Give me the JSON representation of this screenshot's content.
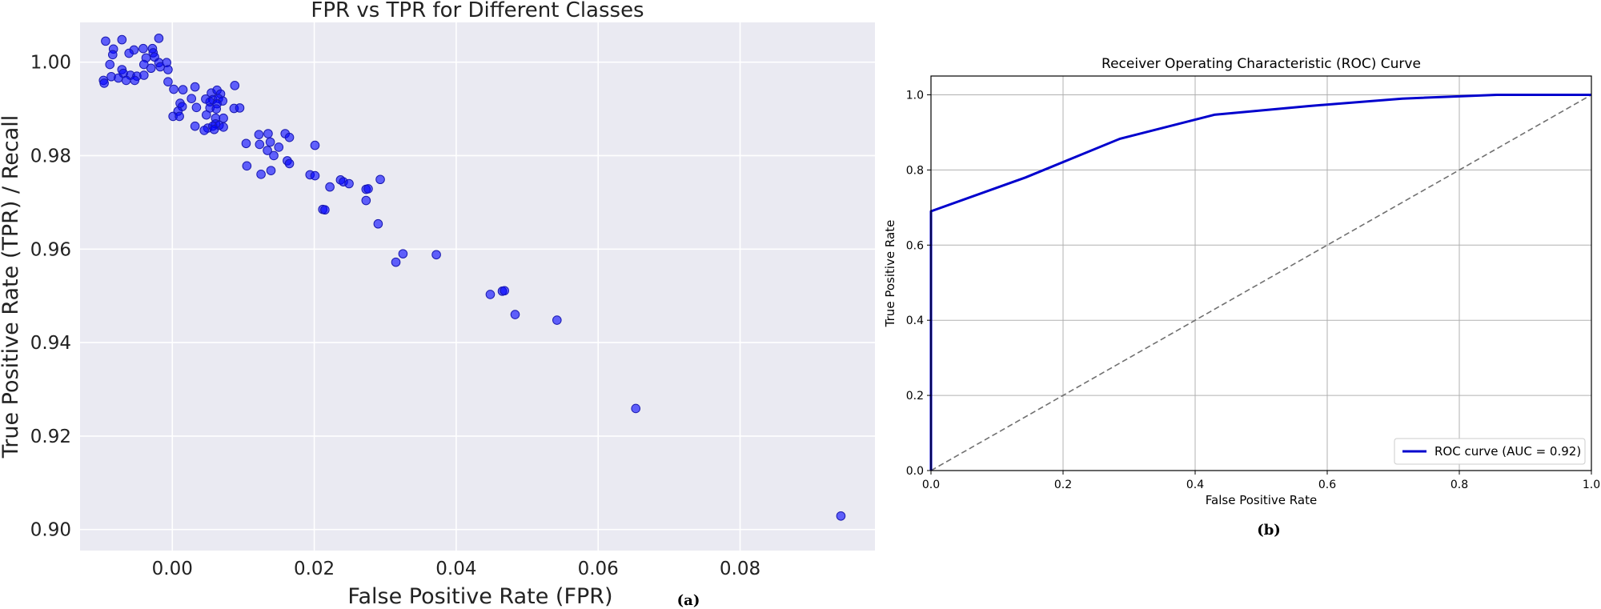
{
  "chart_data": [
    {
      "type": "scatter",
      "title": "FPR vs TPR for Different Classes",
      "xlabel": "False Positive Rate (FPR)",
      "ylabel": "True Positive Rate (TPR) / Recall",
      "xlim": [
        -0.013,
        0.099
      ],
      "ylim": [
        0.8955,
        1.0085
      ],
      "xticks": [
        0.0,
        0.02,
        0.04,
        0.06,
        0.08
      ],
      "xtick_labels": [
        "0.00",
        "0.02",
        "0.04",
        "0.06",
        "0.08"
      ],
      "yticks": [
        0.9,
        0.92,
        0.94,
        0.96,
        0.98,
        1.0
      ],
      "ytick_labels": [
        "0.90",
        "0.92",
        "0.94",
        "0.96",
        "0.98",
        "1.00"
      ],
      "grid": true,
      "style": "seaborn",
      "background": "#eaeaf2",
      "point_color": "#0000ff",
      "caption": "(a)",
      "points": [
        [
          -0.0094,
          1.0045
        ],
        [
          -0.0071,
          1.0048
        ],
        [
          -0.0019,
          1.0051
        ],
        [
          -0.0083,
          1.0028
        ],
        [
          -0.0041,
          1.0029
        ],
        [
          -0.0028,
          1.0029
        ],
        [
          -0.0054,
          1.0026
        ],
        [
          -0.0061,
          1.0019
        ],
        [
          -0.0084,
          1.0016
        ],
        [
          -0.0027,
          1.002
        ],
        [
          -0.0025,
          1.0011
        ],
        [
          -0.0037,
          1.0009
        ],
        [
          -0.0019,
          0.9999
        ],
        [
          -0.0088,
          0.9995
        ],
        [
          -0.004,
          0.9995
        ],
        [
          -0.003,
          0.9987
        ],
        [
          -0.0017,
          0.999
        ],
        [
          -0.0008,
          0.9999
        ],
        [
          -0.0006,
          0.9984
        ],
        [
          -0.0071,
          0.9984
        ],
        [
          -0.0069,
          0.9976
        ],
        [
          -0.0059,
          0.9972
        ],
        [
          -0.005,
          0.997
        ],
        [
          -0.0086,
          0.9969
        ],
        [
          -0.0076,
          0.9966
        ],
        [
          -0.0053,
          0.9961
        ],
        [
          -0.0065,
          0.9961
        ],
        [
          -0.0097,
          0.9961
        ],
        [
          -0.0096,
          0.9955
        ],
        [
          -0.004,
          0.9972
        ],
        [
          -0.0006,
          0.9958
        ],
        [
          0.0002,
          0.9942
        ],
        [
          0.0015,
          0.9941
        ],
        [
          0.0032,
          0.9947
        ],
        [
          0.0055,
          0.9934
        ],
        [
          0.0063,
          0.994
        ],
        [
          0.0068,
          0.9932
        ],
        [
          0.0057,
          0.992
        ],
        [
          0.0047,
          0.9921
        ],
        [
          0.0065,
          0.9922
        ],
        [
          0.0027,
          0.9922
        ],
        [
          0.0071,
          0.9917
        ],
        [
          0.0053,
          0.9915
        ],
        [
          0.0063,
          0.9911
        ],
        [
          0.0088,
          0.995
        ],
        [
          0.0011,
          0.9912
        ],
        [
          0.0014,
          0.9905
        ],
        [
          0.0008,
          0.9895
        ],
        [
          0.0001,
          0.9884
        ],
        [
          0.001,
          0.9884
        ],
        [
          0.0053,
          0.9902
        ],
        [
          0.0062,
          0.99
        ],
        [
          0.0087,
          0.9901
        ],
        [
          0.0095,
          0.9902
        ],
        [
          0.0034,
          0.9903
        ],
        [
          0.0048,
          0.9887
        ],
        [
          0.0061,
          0.988
        ],
        [
          0.0072,
          0.988
        ],
        [
          0.0061,
          0.9868
        ],
        [
          0.0032,
          0.9863
        ],
        [
          0.005,
          0.9859
        ],
        [
          0.0057,
          0.9863
        ],
        [
          0.0066,
          0.9865
        ],
        [
          0.0072,
          0.9861
        ],
        [
          0.0045,
          0.9854
        ],
        [
          0.0059,
          0.9856
        ],
        [
          0.0122,
          0.9845
        ],
        [
          0.0135,
          0.9847
        ],
        [
          0.0159,
          0.9847
        ],
        [
          0.0165,
          0.9839
        ],
        [
          0.0104,
          0.9826
        ],
        [
          0.0123,
          0.9824
        ],
        [
          0.0138,
          0.9829
        ],
        [
          0.015,
          0.9818
        ],
        [
          0.0134,
          0.9811
        ],
        [
          0.0201,
          0.9822
        ],
        [
          0.0143,
          0.98
        ],
        [
          0.0162,
          0.9789
        ],
        [
          0.0165,
          0.9783
        ],
        [
          0.0105,
          0.9778
        ],
        [
          0.0139,
          0.9768
        ],
        [
          0.0125,
          0.976
        ],
        [
          0.0194,
          0.9759
        ],
        [
          0.0201,
          0.9757
        ],
        [
          0.0237,
          0.9748
        ],
        [
          0.0241,
          0.9744
        ],
        [
          0.0249,
          0.974
        ],
        [
          0.0222,
          0.9733
        ],
        [
          0.0273,
          0.9728
        ],
        [
          0.0276,
          0.9729
        ],
        [
          0.0293,
          0.9749
        ],
        [
          0.0273,
          0.9704
        ],
        [
          0.0212,
          0.9685
        ],
        [
          0.0215,
          0.9684
        ],
        [
          0.029,
          0.9654
        ],
        [
          0.0325,
          0.959
        ],
        [
          0.0372,
          0.9588
        ],
        [
          0.0315,
          0.9572
        ],
        [
          0.0465,
          0.951
        ],
        [
          0.0468,
          0.9511
        ],
        [
          0.0448,
          0.9503
        ],
        [
          0.0483,
          0.946
        ],
        [
          0.0542,
          0.9448
        ],
        [
          0.0653,
          0.9259
        ],
        [
          0.0942,
          0.9029
        ]
      ]
    },
    {
      "type": "line",
      "title": "Receiver Operating Characteristic (ROC) Curve",
      "xlabel": "False Positive Rate",
      "ylabel": "True Positive Rate",
      "xlim": [
        0.0,
        1.0
      ],
      "ylim": [
        0.0,
        1.05
      ],
      "xticks": [
        0.0,
        0.2,
        0.4,
        0.6,
        0.8,
        1.0
      ],
      "xtick_labels": [
        "0.0",
        "0.2",
        "0.4",
        "0.6",
        "0.8",
        "1.0"
      ],
      "yticks": [
        0.0,
        0.2,
        0.4,
        0.6,
        0.8,
        1.0
      ],
      "ytick_labels": [
        "0.0",
        "0.2",
        "0.4",
        "0.6",
        "0.8",
        "1.0"
      ],
      "grid": true,
      "legend_position": "lower-right",
      "caption": "(b)",
      "series": [
        {
          "name": "ROC curve (AUC = 0.92)",
          "color": "#0000cd",
          "style": "solid",
          "x": [
            0.0,
            0.0,
            0.143,
            0.286,
            0.429,
            0.571,
            0.714,
            0.857,
            1.0
          ],
          "y": [
            0.0,
            0.69,
            0.78,
            0.883,
            0.947,
            0.97,
            0.99,
            1.0,
            1.0
          ]
        },
        {
          "color": "#707070",
          "style": "dashed",
          "x": [
            0.0,
            1.0
          ],
          "y": [
            0.0,
            1.0
          ]
        }
      ]
    }
  ]
}
